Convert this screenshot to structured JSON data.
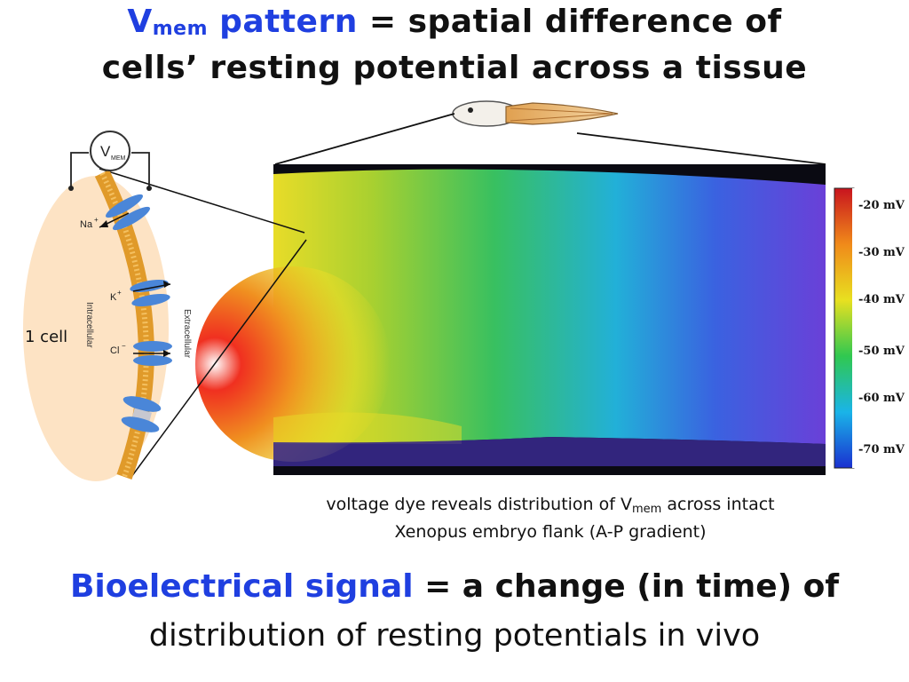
{
  "title": {
    "line1_vmem_main": "V",
    "line1_vmem_sub": "mem",
    "line1_pattern": "pattern",
    "line1_rest": "= spatial difference of",
    "line2": "cells’ resting potential across a tissue"
  },
  "cell_diagram": {
    "meter_main": "V",
    "meter_sub": "MEM",
    "label_cell": "1 cell",
    "label_intracellular": "Intracellular",
    "label_extracellular": "Extracellular",
    "ion_na": "Na",
    "ion_na_sup": "+",
    "ion_k": "K",
    "ion_k_sup": "+",
    "ion_cl": "Cl",
    "ion_cl_sup": "−"
  },
  "colorbar": {
    "labels": [
      "-20 mV",
      "-30 mV",
      "-40 mV",
      "-50 mV",
      "-60 mV",
      "-70 mV"
    ],
    "colors": [
      "#c8141e",
      "#f08a1a",
      "#e8e020",
      "#30c850",
      "#1ab4e8",
      "#1a30d0"
    ]
  },
  "caption": {
    "line1_pre": "voltage dye reveals distribution of V",
    "line1_sub": "mem",
    "line1_post": " across intact",
    "line2": "Xenopus embryo flank (A-P gradient)"
  },
  "bottom": {
    "line1_blue": "Bioelectrical signal",
    "line1_rest": " = a change (in time) of",
    "line2": "distribution of resting potentials in vivo"
  },
  "colors": {
    "accent_blue": "#1f3fe0",
    "cell_fill": "#fde3c4",
    "membrane": "#e09a2a",
    "channel": "#4a86d8"
  }
}
